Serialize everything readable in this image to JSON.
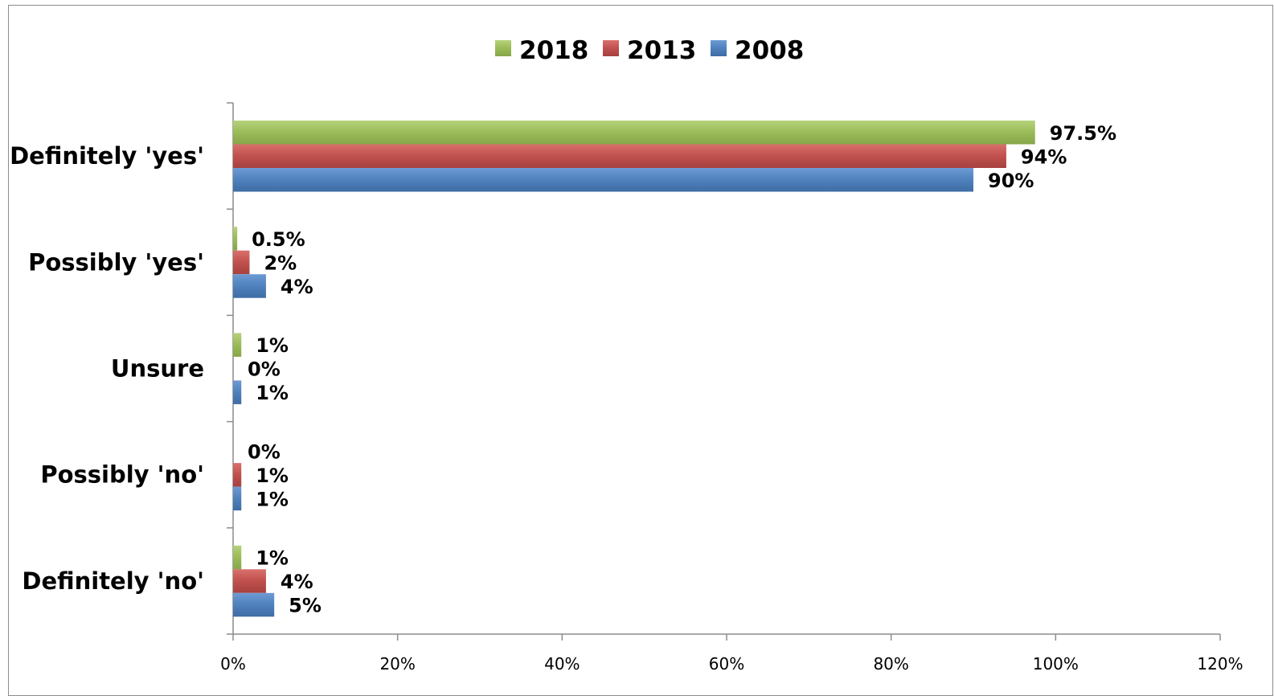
{
  "chart_data": {
    "type": "bar",
    "orientation": "horizontal",
    "categories": [
      "Definitely 'yes'",
      "Possibly 'yes'",
      "Unsure",
      "Possibly 'no'",
      "Definitely 'no'"
    ],
    "series": [
      {
        "name": "2018",
        "color": "#9bbb59",
        "values": [
          97.5,
          0.5,
          1,
          0,
          1
        ],
        "labels": [
          "97.5%",
          "0.5%",
          "1%",
          "0%",
          "1%"
        ]
      },
      {
        "name": "2013",
        "color": "#c0504d",
        "values": [
          94,
          2,
          0,
          1,
          4
        ],
        "labels": [
          "94%",
          "2%",
          "0%",
          "1%",
          "4%"
        ]
      },
      {
        "name": "2008",
        "color": "#4f81bd",
        "values": [
          90,
          4,
          1,
          1,
          5
        ],
        "labels": [
          "90%",
          "4%",
          "1%",
          "1%",
          "5%"
        ]
      }
    ],
    "xlim": [
      0,
      120
    ],
    "xticks": [
      0,
      20,
      40,
      60,
      80,
      100,
      120
    ],
    "xtick_labels": [
      "0%",
      "20%",
      "40%",
      "60%",
      "80%",
      "100%",
      "120%"
    ],
    "legend_position": "top-center",
    "grid": false
  }
}
